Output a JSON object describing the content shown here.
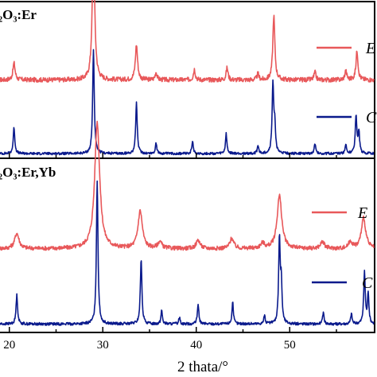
{
  "chart_data": [
    {
      "type": "line",
      "panel_title": "₂O₃:Er",
      "x_axis": "2 thata/°",
      "xlim": [
        19,
        59
      ],
      "ylim": [
        0,
        100
      ],
      "series": [
        {
          "name": "E",
          "color": "#e8585a",
          "offset": 50,
          "noise_level": 1.5,
          "peaks": [
            {
              "x": 20.5,
              "h": 11,
              "w": 0.14
            },
            {
              "x": 29.0,
              "h": 85,
              "w": 0.16
            },
            {
              "x": 33.6,
              "h": 23,
              "w": 0.14
            },
            {
              "x": 35.7,
              "h": 5,
              "w": 0.12
            },
            {
              "x": 39.8,
              "h": 7,
              "w": 0.12
            },
            {
              "x": 43.3,
              "h": 8,
              "w": 0.12
            },
            {
              "x": 46.6,
              "h": 4,
              "w": 0.12
            },
            {
              "x": 48.3,
              "h": 42,
              "w": 0.13
            },
            {
              "x": 52.7,
              "h": 5,
              "w": 0.12
            },
            {
              "x": 56.0,
              "h": 6,
              "w": 0.12
            },
            {
              "x": 57.2,
              "h": 19,
              "w": 0.13
            }
          ]
        },
        {
          "name": "C",
          "color": "#0a1a8c",
          "offset": 2,
          "noise_level": 0.8,
          "peaks": [
            {
              "x": 20.5,
              "h": 17,
              "w": 0.1
            },
            {
              "x": 29.0,
              "h": 68,
              "w": 0.1
            },
            {
              "x": 33.6,
              "h": 33,
              "w": 0.1
            },
            {
              "x": 35.7,
              "h": 7,
              "w": 0.09
            },
            {
              "x": 39.6,
              "h": 8,
              "w": 0.09
            },
            {
              "x": 43.2,
              "h": 13,
              "w": 0.09
            },
            {
              "x": 46.6,
              "h": 5,
              "w": 0.09
            },
            {
              "x": 48.2,
              "h": 45,
              "w": 0.1
            },
            {
              "x": 48.4,
              "h": 18,
              "w": 0.09
            },
            {
              "x": 52.7,
              "h": 7,
              "w": 0.09
            },
            {
              "x": 56.0,
              "h": 6,
              "w": 0.09
            },
            {
              "x": 57.1,
              "h": 25,
              "w": 0.1
            },
            {
              "x": 57.4,
              "h": 14,
              "w": 0.09
            }
          ]
        }
      ]
    },
    {
      "type": "line",
      "panel_title": "₂O₃:Er,Yb",
      "x_axis": "2 thata/°",
      "xlim": [
        19,
        59
      ],
      "ylim": [
        0,
        100
      ],
      "series": [
        {
          "name": "E",
          "color": "#e8585a",
          "offset": 48,
          "noise_level": 1.2,
          "peaks": [
            {
              "x": 20.8,
              "h": 9,
              "w": 0.28
            },
            {
              "x": 29.4,
              "h": 74,
              "w": 0.32
            },
            {
              "x": 34.0,
              "h": 22,
              "w": 0.28
            },
            {
              "x": 36.1,
              "h": 4,
              "w": 0.25
            },
            {
              "x": 40.2,
              "h": 5,
              "w": 0.25
            },
            {
              "x": 43.8,
              "h": 6,
              "w": 0.25
            },
            {
              "x": 47.1,
              "h": 3,
              "w": 0.25
            },
            {
              "x": 48.9,
              "h": 31,
              "w": 0.3
            },
            {
              "x": 53.5,
              "h": 4,
              "w": 0.25
            },
            {
              "x": 56.5,
              "h": 4,
              "w": 0.25
            },
            {
              "x": 57.9,
              "h": 18,
              "w": 0.28
            }
          ]
        },
        {
          "name": "C",
          "color": "#0a1a8c",
          "offset": 4,
          "noise_level": 0.8,
          "peaks": [
            {
              "x": 20.8,
              "h": 17,
              "w": 0.1
            },
            {
              "x": 29.4,
              "h": 84,
              "w": 0.1
            },
            {
              "x": 34.1,
              "h": 38,
              "w": 0.1
            },
            {
              "x": 36.3,
              "h": 8,
              "w": 0.09
            },
            {
              "x": 38.2,
              "h": 4,
              "w": 0.09
            },
            {
              "x": 40.2,
              "h": 12,
              "w": 0.09
            },
            {
              "x": 43.9,
              "h": 13,
              "w": 0.09
            },
            {
              "x": 47.3,
              "h": 5,
              "w": 0.09
            },
            {
              "x": 48.9,
              "h": 50,
              "w": 0.1
            },
            {
              "x": 49.1,
              "h": 22,
              "w": 0.09
            },
            {
              "x": 53.6,
              "h": 7,
              "w": 0.09
            },
            {
              "x": 56.6,
              "h": 6,
              "w": 0.09
            },
            {
              "x": 58.0,
              "h": 30,
              "w": 0.1
            },
            {
              "x": 58.4,
              "h": 18,
              "w": 0.09
            }
          ]
        }
      ]
    }
  ],
  "shared_x_ticks": [
    20,
    30,
    40,
    50
  ],
  "xlabel": "2 thata/°"
}
